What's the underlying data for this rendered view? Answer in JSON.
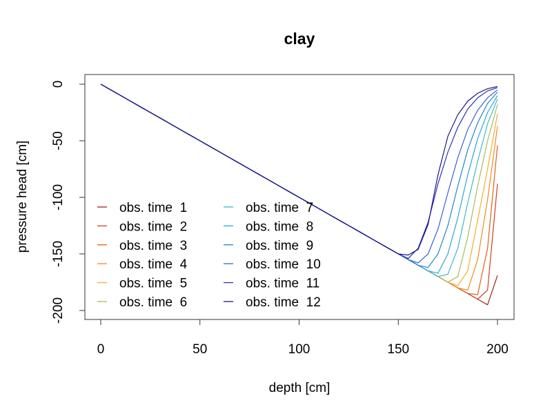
{
  "chart_data": {
    "type": "line",
    "title": "clay",
    "xlabel": "depth [cm]",
    "ylabel": "pressure head [cm]",
    "xlim": [
      0,
      200
    ],
    "ylim": [
      -200,
      0
    ],
    "x_ticks": [
      0,
      50,
      100,
      150,
      200
    ],
    "y_ticks": [
      0,
      -50,
      -100,
      -150,
      -200
    ],
    "grid": false,
    "legend_position": "bottom-left",
    "legend_columns": 2,
    "x": [
      0,
      5,
      10,
      15,
      20,
      25,
      30,
      35,
      40,
      45,
      50,
      55,
      60,
      65,
      70,
      75,
      80,
      85,
      90,
      95,
      100,
      105,
      110,
      115,
      120,
      125,
      130,
      135,
      140,
      145,
      150,
      155,
      160,
      165,
      170,
      175,
      180,
      185,
      190,
      195,
      200
    ],
    "series": [
      {
        "name": "obs. time  1",
        "color": "#9c1f12",
        "values": [
          0,
          -5,
          -10,
          -15,
          -20,
          -25,
          -30,
          -35,
          -40,
          -45,
          -50,
          -55,
          -60,
          -65,
          -70,
          -75,
          -80,
          -85,
          -90,
          -95,
          -100,
          -105,
          -110,
          -115,
          -120,
          -125,
          -130,
          -135,
          -140,
          -145,
          -150,
          -155,
          -160,
          -165,
          -170,
          -175,
          -180,
          -185,
          -190,
          -195,
          -169
        ]
      },
      {
        "name": "obs. time  2",
        "color": "#c7401d",
        "values": [
          0,
          -5,
          -10,
          -15,
          -20,
          -25,
          -30,
          -35,
          -40,
          -45,
          -50,
          -55,
          -60,
          -65,
          -70,
          -75,
          -80,
          -85,
          -90,
          -95,
          -100,
          -105,
          -110,
          -115,
          -120,
          -125,
          -130,
          -135,
          -140,
          -145,
          -150,
          -155,
          -160,
          -165,
          -170,
          -175,
          -180,
          -185,
          -190,
          -182,
          -88
        ]
      },
      {
        "name": "obs. time  3",
        "color": "#e06014",
        "values": [
          0,
          -5,
          -10,
          -15,
          -20,
          -25,
          -30,
          -35,
          -40,
          -45,
          -50,
          -55,
          -60,
          -65,
          -70,
          -75,
          -80,
          -85,
          -90,
          -95,
          -100,
          -105,
          -110,
          -115,
          -120,
          -125,
          -130,
          -135,
          -140,
          -145,
          -150,
          -155,
          -160,
          -165,
          -170,
          -175,
          -180,
          -185,
          -186,
          -145,
          -54
        ]
      },
      {
        "name": "obs. time  4",
        "color": "#f08a1a",
        "values": [
          0,
          -5,
          -10,
          -15,
          -20,
          -25,
          -30,
          -35,
          -40,
          -45,
          -50,
          -55,
          -60,
          -65,
          -70,
          -75,
          -80,
          -85,
          -90,
          -95,
          -100,
          -105,
          -110,
          -115,
          -120,
          -125,
          -130,
          -135,
          -140,
          -145,
          -150,
          -155,
          -160,
          -165,
          -170,
          -175,
          -180,
          -182,
          -155,
          -102,
          -37
        ]
      },
      {
        "name": "obs. time  5",
        "color": "#f4ad2c",
        "values": [
          0,
          -5,
          -10,
          -15,
          -20,
          -25,
          -30,
          -35,
          -40,
          -45,
          -50,
          -55,
          -60,
          -65,
          -70,
          -75,
          -80,
          -85,
          -90,
          -95,
          -100,
          -105,
          -110,
          -115,
          -120,
          -125,
          -130,
          -135,
          -140,
          -145,
          -150,
          -155,
          -160,
          -165,
          -170,
          -175,
          -178,
          -165,
          -120,
          -75,
          -26
        ]
      },
      {
        "name": "obs. time  6",
        "color": "#a9b85e",
        "values": [
          0,
          -5,
          -10,
          -15,
          -20,
          -25,
          -30,
          -35,
          -40,
          -45,
          -50,
          -55,
          -60,
          -65,
          -70,
          -75,
          -80,
          -85,
          -90,
          -95,
          -100,
          -105,
          -110,
          -115,
          -120,
          -125,
          -130,
          -135,
          -140,
          -145,
          -150,
          -155,
          -160,
          -165,
          -170,
          -175,
          -170,
          -135,
          -90,
          -50,
          -18
        ]
      },
      {
        "name": "obs. time  7",
        "color": "#3fb8c9",
        "values": [
          0,
          -5,
          -10,
          -15,
          -20,
          -25,
          -30,
          -35,
          -40,
          -45,
          -50,
          -55,
          -60,
          -65,
          -70,
          -75,
          -80,
          -85,
          -90,
          -95,
          -100,
          -105,
          -110,
          -115,
          -120,
          -125,
          -130,
          -135,
          -140,
          -145,
          -150,
          -155,
          -160,
          -165,
          -170,
          -168,
          -145,
          -105,
          -68,
          -35,
          -13
        ]
      },
      {
        "name": "obs. time  8",
        "color": "#2aa6d6",
        "values": [
          0,
          -5,
          -10,
          -15,
          -20,
          -25,
          -30,
          -35,
          -40,
          -45,
          -50,
          -55,
          -60,
          -65,
          -70,
          -75,
          -80,
          -85,
          -90,
          -95,
          -100,
          -105,
          -110,
          -115,
          -120,
          -125,
          -130,
          -135,
          -140,
          -145,
          -150,
          -155,
          -160,
          -165,
          -167,
          -150,
          -118,
          -80,
          -48,
          -25,
          -10
        ]
      },
      {
        "name": "obs. time  9",
        "color": "#1f84cc",
        "values": [
          0,
          -5,
          -10,
          -15,
          -20,
          -25,
          -30,
          -35,
          -40,
          -45,
          -50,
          -55,
          -60,
          -65,
          -70,
          -75,
          -80,
          -85,
          -90,
          -95,
          -100,
          -105,
          -110,
          -115,
          -120,
          -125,
          -130,
          -135,
          -140,
          -145,
          -150,
          -155,
          -160,
          -162,
          -150,
          -125,
          -90,
          -58,
          -34,
          -17,
          -7
        ]
      },
      {
        "name": "obs. time  10",
        "color": "#3b5fd6",
        "values": [
          0,
          -5,
          -10,
          -15,
          -20,
          -25,
          -30,
          -35,
          -40,
          -45,
          -50,
          -55,
          -60,
          -65,
          -70,
          -75,
          -80,
          -85,
          -90,
          -95,
          -100,
          -105,
          -110,
          -115,
          -120,
          -125,
          -130,
          -135,
          -140,
          -145,
          -150,
          -155,
          -158,
          -150,
          -128,
          -96,
          -65,
          -40,
          -23,
          -12,
          -5
        ]
      },
      {
        "name": "obs. time  11",
        "color": "#2a2fbd",
        "values": [
          0,
          -5,
          -10,
          -15,
          -20,
          -25,
          -30,
          -35,
          -40,
          -45,
          -50,
          -55,
          -60,
          -65,
          -70,
          -75,
          -80,
          -85,
          -90,
          -95,
          -100,
          -105,
          -110,
          -115,
          -120,
          -125,
          -130,
          -135,
          -140,
          -145,
          -150,
          -154,
          -145,
          -122,
          -88,
          -60,
          -38,
          -22,
          -12,
          -6,
          -3
        ]
      },
      {
        "name": "obs. time  12",
        "color": "#1a1480",
        "values": [
          0,
          -5,
          -10,
          -15,
          -20,
          -25,
          -30,
          -35,
          -40,
          -45,
          -50,
          -55,
          -60,
          -65,
          -70,
          -75,
          -80,
          -85,
          -90,
          -95,
          -100,
          -105,
          -110,
          -115,
          -120,
          -125,
          -130,
          -135,
          -140,
          -145,
          -150,
          -151,
          -146,
          -124,
          -80,
          -46,
          -27,
          -15,
          -8,
          -4,
          -2
        ]
      }
    ]
  }
}
